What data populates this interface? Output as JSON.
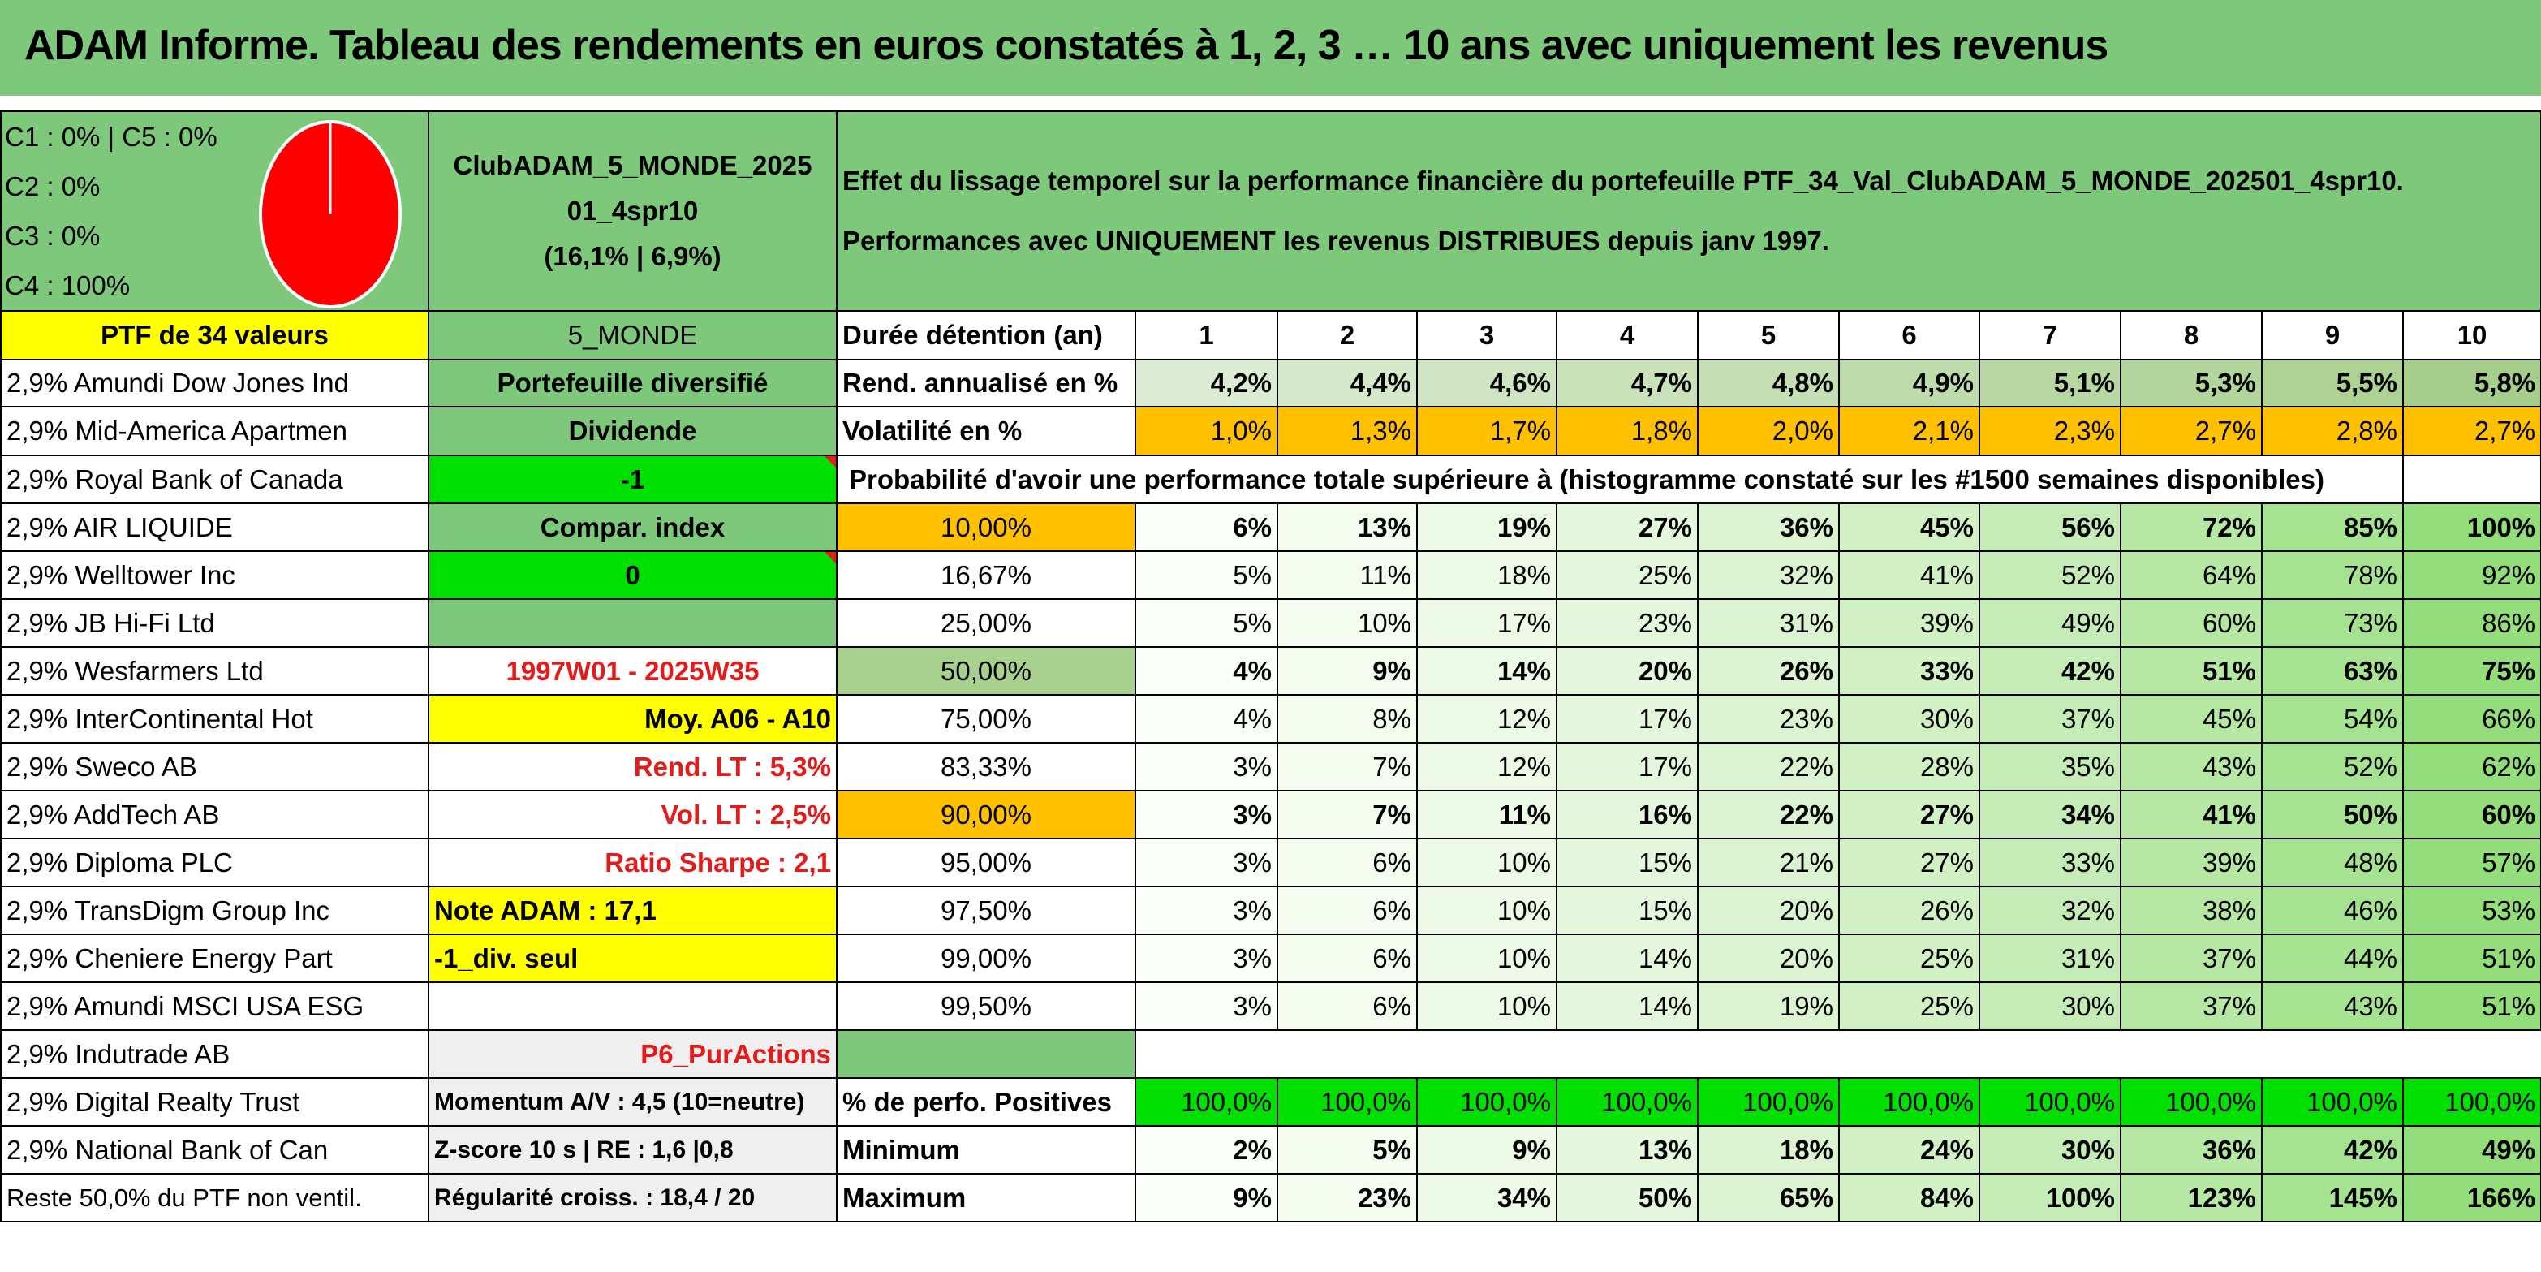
{
  "title": "ADAM Informe. Tableau des rendements en euros constatés à 1, 2, 3 … 10 ans avec uniquement les revenus",
  "allocation": [
    "C1 : 0% | C5 : 0%",
    "C2 : 0%",
    "C3 : 0%",
    "C4 : 100%"
  ],
  "pie_colors": {
    "fill": "#ff0000",
    "stroke": "#ffffff"
  },
  "portfolio": {
    "name_line1": "ClubADAM_5_MONDE_2025",
    "name_line2": "01_4spr10",
    "stats": "(16,1% | 6,9%)"
  },
  "description": {
    "line1": "Effet du lissage temporel sur la performance financière du portefeuille PTF_34_Val_ClubADAM_5_MONDE_202501_4spr10.",
    "line2": "Performances avec UNIQUEMENT les revenus DISTRIBUES depuis janv 1997."
  },
  "ptf_header": "PTF de 34 valeurs",
  "holdings": [
    "2,9% Amundi Dow Jones Ind",
    "2,9% Mid-America Apartmen",
    "2,9% Royal Bank of Canada",
    "2,9% AIR LIQUIDE",
    "2,9% Welltower Inc",
    "2,9% JB Hi-Fi Ltd",
    "2,9% Wesfarmers Ltd",
    "2,9% InterContinental Hot",
    "2,9% Sweco AB",
    "2,9% AddTech AB",
    "2,9% Diploma PLC",
    "2,9% TransDigm Group Inc",
    "2,9% Cheniere Energy Part",
    "2,9% Amundi MSCI USA ESG",
    "2,9% Indutrade AB",
    "2,9% Digital Realty Trust",
    "2,9% National Bank of Can",
    "Reste 50,0% du PTF non ventil."
  ],
  "info": [
    "5_MONDE",
    "Portefeuille diversifié",
    "Dividende",
    "-1",
    "Compar. index",
    "0",
    "",
    "1997W01 - 2025W35",
    "Moy. A06 - A10",
    "Rend. LT : 5,3%",
    "Vol. LT : 2,5%",
    "Ratio Sharpe : 2,1",
    "Note ADAM : 17,1",
    "-1_div. seul",
    "",
    "P6_PurActions",
    "Momentum A/V : 4,5 (10=neutre)",
    "Z-score 10 s | RE : 1,6 |0,8",
    "Régularité croiss. : 18,4 / 20"
  ],
  "labels": {
    "duration": "Durée détention (an)",
    "rend": "Rend. annualisé en %",
    "vol": "Volatilité en %",
    "prob": "Probabilité d'avoir une performance totale supérieure à (histogramme constaté sur les #1500 semaines disponibles)",
    "positive": "% de perfo. Positives",
    "min": "Minimum",
    "max": "Maximum"
  },
  "years": [
    "1",
    "2",
    "3",
    "4",
    "5",
    "6",
    "7",
    "8",
    "9",
    "10"
  ],
  "rend": [
    "4,2%",
    "4,4%",
    "4,6%",
    "4,7%",
    "4,8%",
    "4,9%",
    "5,1%",
    "5,3%",
    "5,5%",
    "5,8%"
  ],
  "vol": [
    "1,0%",
    "1,3%",
    "1,7%",
    "1,8%",
    "2,0%",
    "2,1%",
    "2,3%",
    "2,7%",
    "2,8%",
    "2,7%"
  ],
  "prob_rows": [
    {
      "p": "10,00%",
      "v": [
        "6%",
        "13%",
        "19%",
        "27%",
        "36%",
        "45%",
        "56%",
        "72%",
        "85%",
        "100%"
      ]
    },
    {
      "p": "16,67%",
      "v": [
        "5%",
        "11%",
        "18%",
        "25%",
        "32%",
        "41%",
        "52%",
        "64%",
        "78%",
        "92%"
      ]
    },
    {
      "p": "25,00%",
      "v": [
        "5%",
        "10%",
        "17%",
        "23%",
        "31%",
        "39%",
        "49%",
        "60%",
        "73%",
        "86%"
      ]
    },
    {
      "p": "50,00%",
      "v": [
        "4%",
        "9%",
        "14%",
        "20%",
        "26%",
        "33%",
        "42%",
        "51%",
        "63%",
        "75%"
      ]
    },
    {
      "p": "75,00%",
      "v": [
        "4%",
        "8%",
        "12%",
        "17%",
        "23%",
        "30%",
        "37%",
        "45%",
        "54%",
        "66%"
      ]
    },
    {
      "p": "83,33%",
      "v": [
        "3%",
        "7%",
        "12%",
        "17%",
        "22%",
        "28%",
        "35%",
        "43%",
        "52%",
        "62%"
      ]
    },
    {
      "p": "90,00%",
      "v": [
        "3%",
        "7%",
        "11%",
        "16%",
        "22%",
        "27%",
        "34%",
        "41%",
        "50%",
        "60%"
      ]
    },
    {
      "p": "95,00%",
      "v": [
        "3%",
        "6%",
        "10%",
        "15%",
        "21%",
        "27%",
        "33%",
        "39%",
        "48%",
        "57%"
      ]
    },
    {
      "p": "97,50%",
      "v": [
        "3%",
        "6%",
        "10%",
        "15%",
        "20%",
        "26%",
        "32%",
        "38%",
        "46%",
        "53%"
      ]
    },
    {
      "p": "99,00%",
      "v": [
        "3%",
        "6%",
        "10%",
        "14%",
        "20%",
        "25%",
        "31%",
        "37%",
        "44%",
        "51%"
      ]
    },
    {
      "p": "99,50%",
      "v": [
        "3%",
        "6%",
        "10%",
        "14%",
        "19%",
        "25%",
        "30%",
        "37%",
        "43%",
        "51%"
      ]
    }
  ],
  "positive": [
    "100,0%",
    "100,0%",
    "100,0%",
    "100,0%",
    "100,0%",
    "100,0%",
    "100,0%",
    "100,0%",
    "100,0%",
    "100,0%"
  ],
  "minimum": [
    "2%",
    "5%",
    "9%",
    "13%",
    "18%",
    "24%",
    "30%",
    "36%",
    "42%",
    "49%"
  ],
  "maximum": [
    "9%",
    "23%",
    "34%",
    "50%",
    "65%",
    "84%",
    "100%",
    "123%",
    "145%",
    "166%"
  ]
}
